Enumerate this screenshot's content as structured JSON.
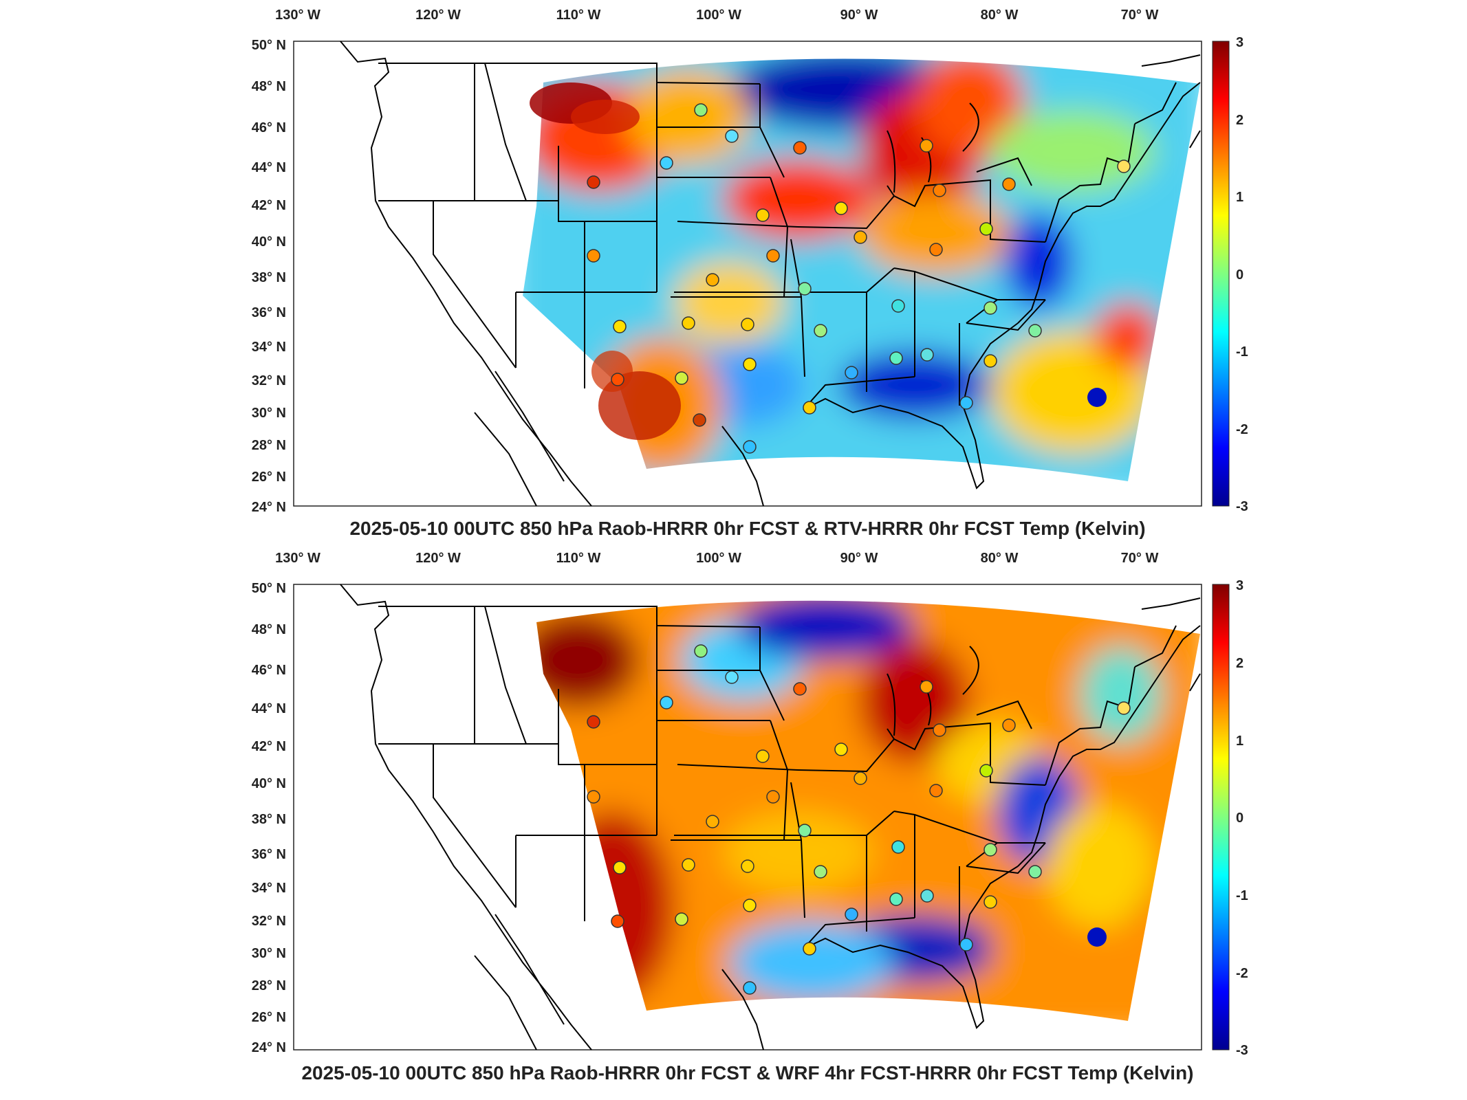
{
  "colormap": [
    "#00008f",
    "#0000ff",
    "#0080ff",
    "#00ffff",
    "#80ff80",
    "#ffff00",
    "#ff8000",
    "#ff0000",
    "#800000"
  ],
  "panels": [
    {
      "id": "top",
      "title": "2025-05-10 00UTC 850 hPa Raob-HRRR 0hr FCST & RTV-HRRR 0hr FCST Temp (Kelvin)",
      "lon_labels": [
        "130° W",
        "120° W",
        "110° W",
        "100° W",
        "90° W",
        "80° W",
        "70° W"
      ],
      "lat_labels": [
        "50° N",
        "48° N",
        "46° N",
        "44° N",
        "42° N",
        "40° N",
        "38° N",
        "36° N",
        "34° N",
        "32° N",
        "30° N",
        "28° N",
        "26° N",
        "24° N"
      ],
      "colorbar_labels": [
        "3",
        "2",
        "1",
        "0",
        "-1",
        "-2",
        "-3"
      ]
    },
    {
      "id": "bottom",
      "title": "2025-05-10 00UTC 850 hPa Raob-HRRR 0hr FCST & WRF 4hr FCST-HRRR 0hr FCST Temp (Kelvin)",
      "lon_labels": [
        "130° W",
        "120° W",
        "110° W",
        "100° W",
        "90° W",
        "80° W",
        "70° W"
      ],
      "lat_labels": [
        "50° N",
        "48° N",
        "46° N",
        "44° N",
        "42° N",
        "40° N",
        "38° N",
        "36° N",
        "34° N",
        "32° N",
        "30° N",
        "28° N",
        "26° N",
        "24° N"
      ],
      "colorbar_labels": [
        "3",
        "2",
        "1",
        "0",
        "-1",
        "-2",
        "-3"
      ]
    }
  ]
}
